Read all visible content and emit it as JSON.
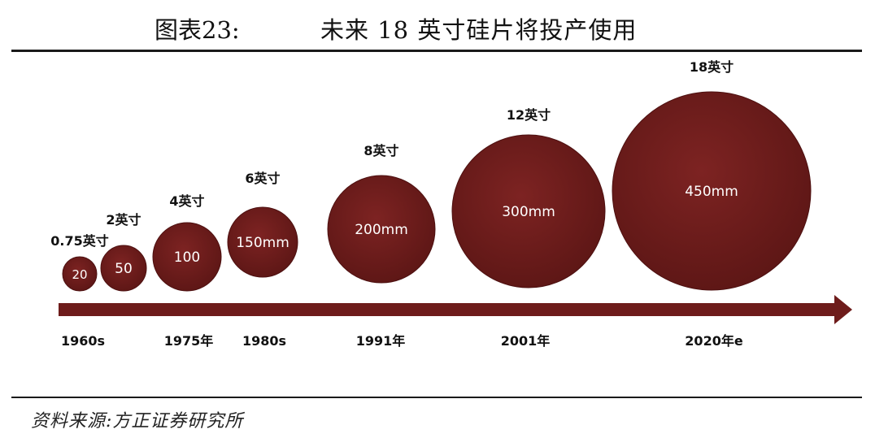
{
  "header": {
    "figure_label": "图表23:",
    "title": "未来 18 英寸硅片将投产使用"
  },
  "footer": {
    "source": "资料来源:方正证券研究所"
  },
  "colors": {
    "wafer": "#6e1c1b",
    "arrow": "#6e1c1b"
  },
  "wafers": [
    {
      "size_label": "0.75英寸",
      "diameter_label": "20",
      "diameter_mm": 20,
      "year_label": "1960s"
    },
    {
      "size_label": "2英寸",
      "diameter_label": "50",
      "diameter_mm": 50,
      "year_label": ""
    },
    {
      "size_label": "4英寸",
      "diameter_label": "100",
      "diameter_mm": 100,
      "year_label": "1975年"
    },
    {
      "size_label": "6英寸",
      "diameter_label": "150mm",
      "diameter_mm": 150,
      "year_label": "1980s"
    },
    {
      "size_label": "8英寸",
      "diameter_label": "200mm",
      "diameter_mm": 200,
      "year_label": "1991年"
    },
    {
      "size_label": "12英寸",
      "diameter_label": "300mm",
      "diameter_mm": 300,
      "year_label": "2001年"
    },
    {
      "size_label": "18英寸",
      "diameter_label": "450mm",
      "diameter_mm": 450,
      "year_label": "2020年e"
    }
  ]
}
